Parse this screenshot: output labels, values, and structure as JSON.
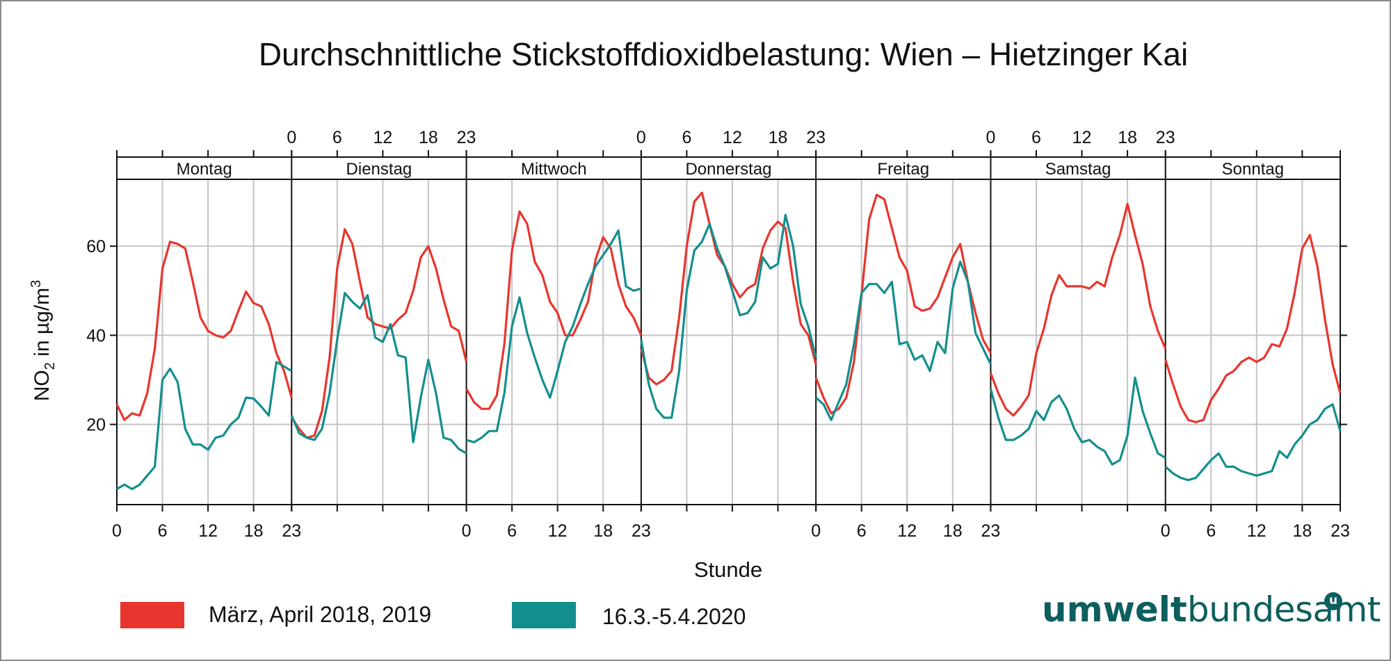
{
  "chart_data": {
    "type": "line",
    "title": "Durchschnittliche Stickstoffdioxidbelastung: Wien – Hietzinger Kai",
    "xlabel": "Stunde",
    "ylabel_main": "NO",
    "ylabel_sub": "2",
    "ylabel_rest": " in µg/m",
    "ylabel_sup": "3",
    "ylim": [
      2,
      75
    ],
    "yticks": [
      20,
      40,
      60
    ],
    "xrange": [
      0,
      23
    ],
    "xticks": [
      0,
      6,
      12,
      18,
      23
    ],
    "grid": true,
    "panels": [
      "Montag",
      "Dienstag",
      "Mittwoch",
      "Donnerstag",
      "Freitag",
      "Samstag",
      "Sonntag"
    ],
    "series": [
      {
        "name": "März, April 2018, 2019",
        "color": "#e8352d",
        "values": [
          [
            24.5,
            21,
            22.5,
            22,
            27,
            37,
            55,
            61,
            60.5,
            59.5,
            52,
            44,
            41,
            40,
            39.5,
            41,
            45.5,
            49.8,
            47.2,
            46.5,
            42.5,
            36,
            32,
            26
          ],
          [
            21.5,
            19,
            17,
            17.5,
            23,
            35,
            55,
            63.8,
            60.5,
            52,
            44,
            42.5,
            42,
            41.5,
            43.5,
            45,
            50,
            57.5,
            60,
            55,
            48,
            42,
            41,
            34
          ],
          [
            28,
            25,
            23.5,
            23.5,
            26.5,
            38,
            59,
            67.8,
            65,
            56.5,
            53.5,
            47.5,
            45,
            40,
            40,
            43.5,
            47.5,
            57,
            62,
            59.5,
            51.5,
            46.5,
            44,
            40
          ],
          [
            37,
            30.5,
            29,
            30,
            32,
            44,
            60,
            70,
            72,
            65,
            58,
            55.5,
            51.5,
            48.5,
            50.5,
            51.5,
            59.5,
            63.5,
            65.5,
            64,
            52,
            42.5,
            40,
            33.5
          ],
          [
            30.5,
            26,
            22.5,
            23.5,
            26,
            34,
            49,
            66,
            71.5,
            70.5,
            64,
            57.5,
            54.5,
            46.5,
            45.5,
            46,
            48.5,
            53,
            57.5,
            60.5,
            52,
            45,
            39,
            36
          ],
          [
            31.5,
            27,
            23.5,
            22,
            24,
            26.5,
            36,
            41.5,
            49,
            53.5,
            51,
            51,
            51,
            50.5,
            52,
            51,
            57.5,
            62.5,
            69.5,
            62.5,
            56,
            46.5,
            41,
            37
          ],
          [
            34.5,
            29,
            24,
            21,
            20.5,
            21,
            25.5,
            28,
            31,
            32,
            34,
            35,
            34,
            35,
            38,
            37.5,
            41.5,
            49.5,
            59.5,
            62.5,
            55.5,
            43.5,
            33.5,
            27
          ]
        ]
      },
      {
        "name": "16.3.-5.4.2020",
        "color": "#138e8e",
        "values": [
          [
            5.5,
            6.5,
            5.5,
            6.5,
            8.5,
            10.5,
            30,
            32.5,
            29.5,
            19,
            15.5,
            15.5,
            14.3,
            17,
            17.5,
            20,
            21.5,
            26,
            25.8,
            24,
            22,
            34,
            33,
            32
          ],
          [
            22,
            18,
            17,
            16.5,
            19,
            27,
            39,
            49.5,
            47.5,
            46,
            49,
            39.5,
            38.5,
            42.5,
            35.5,
            35,
            16,
            26,
            34.5,
            27,
            17,
            16.5,
            14.5,
            13.5
          ],
          [
            16.5,
            16,
            17,
            18.5,
            18.5,
            27,
            42,
            48.5,
            40.5,
            35,
            30,
            26,
            32,
            38.5,
            42,
            47,
            51.5,
            55.5,
            58,
            60.5,
            63.5,
            51,
            50,
            50.5
          ],
          [
            39,
            29,
            23.5,
            21.5,
            21.5,
            32,
            50,
            59,
            61,
            65,
            59.5,
            55.5,
            50,
            44.5,
            45,
            47.5,
            57.5,
            55,
            56,
            67,
            60,
            47,
            42,
            35
          ],
          [
            26,
            24.5,
            21,
            25,
            29,
            38,
            49.5,
            51.5,
            51.5,
            49.5,
            52,
            38,
            38.5,
            34.5,
            35.5,
            32,
            38.5,
            36,
            50.5,
            56.5,
            52,
            40.5,
            37,
            33.5
          ],
          [
            28,
            21.5,
            16.5,
            16.5,
            17.5,
            19,
            23,
            21,
            25,
            26.5,
            23.5,
            19,
            16,
            16.5,
            15,
            14,
            11,
            12,
            17.5,
            30.5,
            23,
            18,
            13.5,
            12.5
          ],
          [
            10.5,
            9,
            8,
            7.5,
            8,
            10,
            12,
            13.5,
            10.5,
            10.5,
            9.5,
            9,
            8.5,
            9,
            9.5,
            14,
            12.5,
            15.5,
            17.5,
            20,
            21,
            23.5,
            24.5,
            18.5
          ]
        ]
      }
    ]
  },
  "legend": {
    "red_label": "März, April 2018, 2019",
    "teal_label": "16.3.-5.4.2020",
    "red_color": "#e8352d",
    "teal_color": "#138e8e"
  },
  "logo": {
    "bold": "umwelt",
    "light": "bundesamt",
    "badge": "u"
  }
}
